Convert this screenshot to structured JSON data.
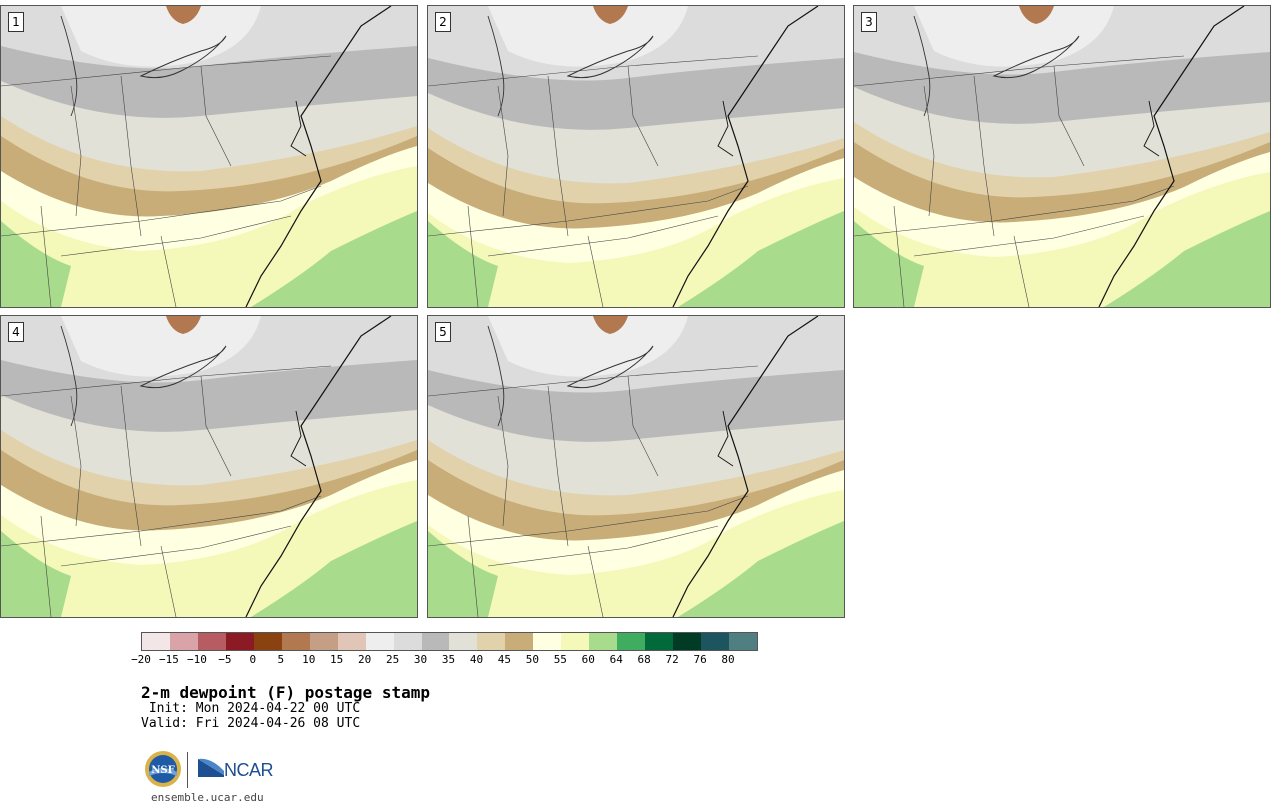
{
  "panels": [
    {
      "label": "1"
    },
    {
      "label": "2"
    },
    {
      "label": "3"
    },
    {
      "label": "4"
    },
    {
      "label": "5"
    }
  ],
  "colorbar": {
    "colors": [
      "#f2e6e6",
      "#d9a3a8",
      "#b85c63",
      "#8c1a24",
      "#8a4210",
      "#b27850",
      "#c59e86",
      "#e1c5b6",
      "#eeeeee",
      "#dcdcdc",
      "#b9b9b9",
      "#e1e1d7",
      "#e1d2ab",
      "#c8ad78",
      "#ffffe1",
      "#f4f8b9",
      "#a8dc8c",
      "#3fac5f",
      "#006a3b",
      "#003b26",
      "#1c5560",
      "#4f7f80"
    ],
    "labels": [
      "−20",
      "−15",
      "−10",
      "−5",
      "0",
      "5",
      "10",
      "15",
      "20",
      "25",
      "30",
      "35",
      "40",
      "45",
      "50",
      "55",
      "60",
      "64",
      "68",
      "72",
      "76",
      "80"
    ]
  },
  "title": "2-m dewpoint (F) postage stamp",
  "init": " Init: Mon 2024-04-22 00 UTC",
  "valid": "Valid: Fri 2024-04-26 08 UTC",
  "logos": {
    "nsf": "NSF",
    "ncar": "NCAR"
  },
  "website": "ensemble.ucar.edu"
}
